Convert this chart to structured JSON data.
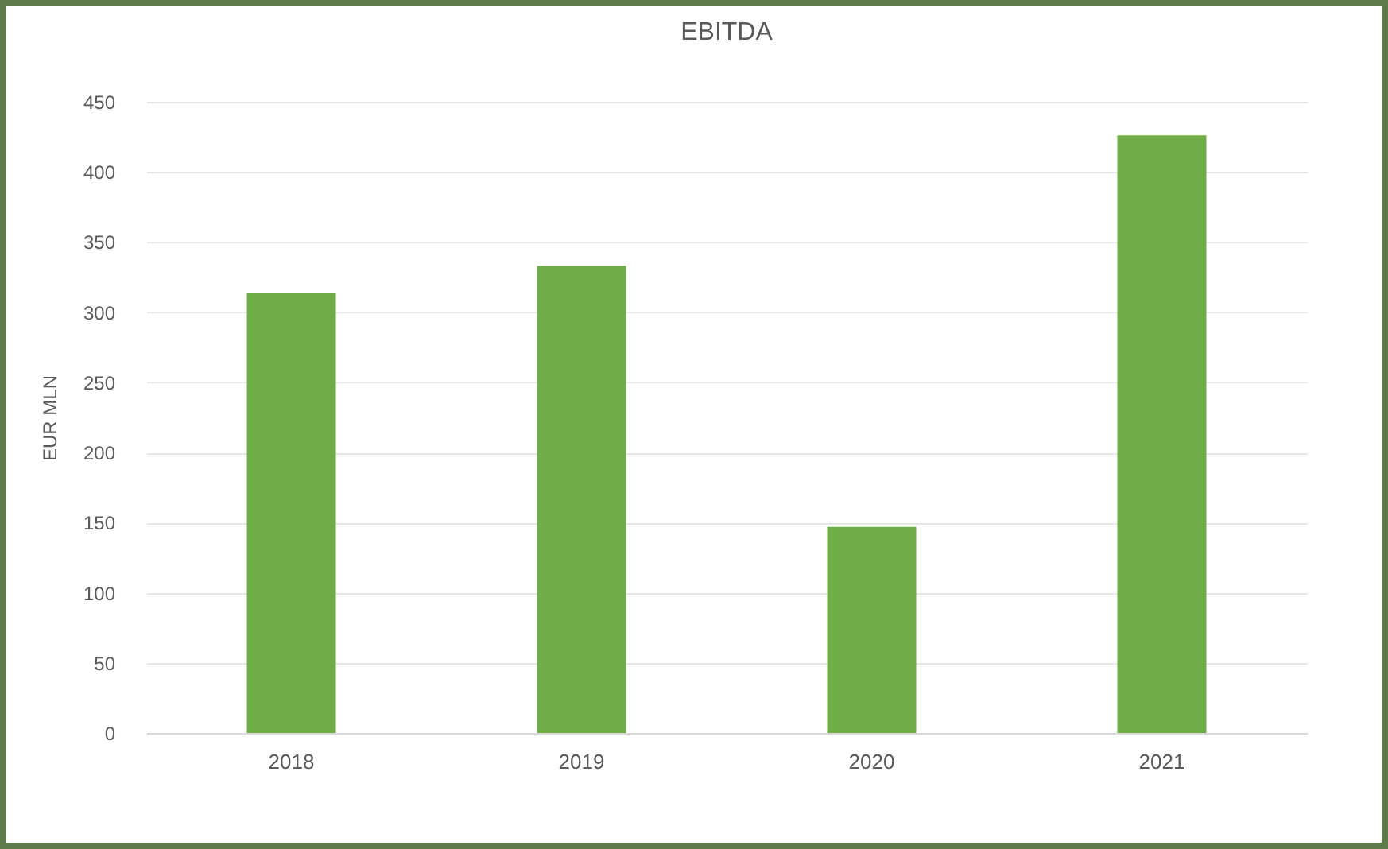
{
  "chart_data": {
    "type": "bar",
    "title": "EBITDA",
    "ylabel": "EUR MLN",
    "categories": [
      "2018",
      "2019",
      "2020",
      "2021"
    ],
    "values": [
      314,
      333,
      147,
      426
    ],
    "color": "#70ad47",
    "ylim": [
      0,
      450
    ],
    "yticks": [
      0,
      50,
      100,
      150,
      200,
      250,
      300,
      350,
      400,
      450
    ],
    "grid": "y"
  }
}
